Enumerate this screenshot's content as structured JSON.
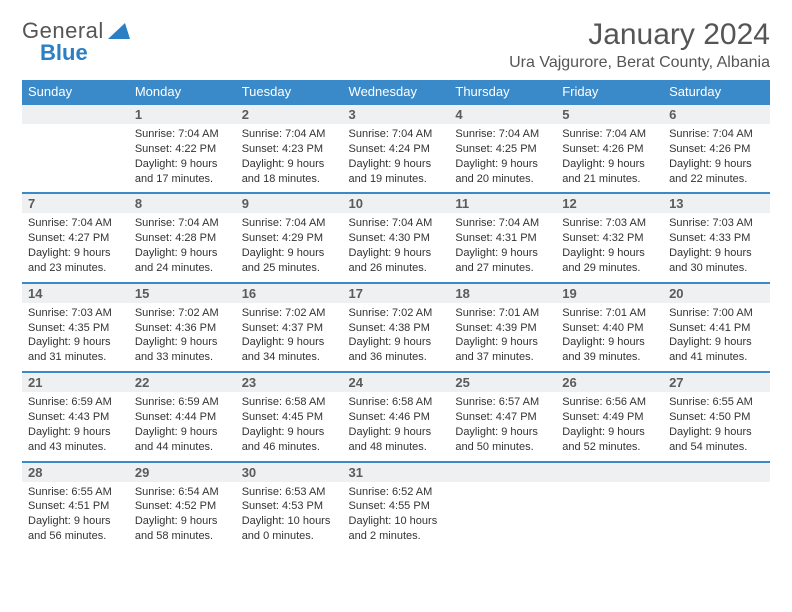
{
  "brand": {
    "g": "General",
    "b": "Blue"
  },
  "title": {
    "month": "January 2024",
    "location": "Ura Vajgurore, Berat County, Albania"
  },
  "dow": [
    "Sunday",
    "Monday",
    "Tuesday",
    "Wednesday",
    "Thursday",
    "Friday",
    "Saturday"
  ],
  "colors": {
    "accent": "#3a8ac9",
    "daynum_bg": "#eef0f2",
    "text": "#333333",
    "muted": "#555555"
  },
  "weeks": [
    [
      {
        "n": "",
        "sunrise": "",
        "sunset": "",
        "day1": "",
        "day2": ""
      },
      {
        "n": "1",
        "sunrise": "Sunrise: 7:04 AM",
        "sunset": "Sunset: 4:22 PM",
        "day1": "Daylight: 9 hours",
        "day2": "and 17 minutes."
      },
      {
        "n": "2",
        "sunrise": "Sunrise: 7:04 AM",
        "sunset": "Sunset: 4:23 PM",
        "day1": "Daylight: 9 hours",
        "day2": "and 18 minutes."
      },
      {
        "n": "3",
        "sunrise": "Sunrise: 7:04 AM",
        "sunset": "Sunset: 4:24 PM",
        "day1": "Daylight: 9 hours",
        "day2": "and 19 minutes."
      },
      {
        "n": "4",
        "sunrise": "Sunrise: 7:04 AM",
        "sunset": "Sunset: 4:25 PM",
        "day1": "Daylight: 9 hours",
        "day2": "and 20 minutes."
      },
      {
        "n": "5",
        "sunrise": "Sunrise: 7:04 AM",
        "sunset": "Sunset: 4:26 PM",
        "day1": "Daylight: 9 hours",
        "day2": "and 21 minutes."
      },
      {
        "n": "6",
        "sunrise": "Sunrise: 7:04 AM",
        "sunset": "Sunset: 4:26 PM",
        "day1": "Daylight: 9 hours",
        "day2": "and 22 minutes."
      }
    ],
    [
      {
        "n": "7",
        "sunrise": "Sunrise: 7:04 AM",
        "sunset": "Sunset: 4:27 PM",
        "day1": "Daylight: 9 hours",
        "day2": "and 23 minutes."
      },
      {
        "n": "8",
        "sunrise": "Sunrise: 7:04 AM",
        "sunset": "Sunset: 4:28 PM",
        "day1": "Daylight: 9 hours",
        "day2": "and 24 minutes."
      },
      {
        "n": "9",
        "sunrise": "Sunrise: 7:04 AM",
        "sunset": "Sunset: 4:29 PM",
        "day1": "Daylight: 9 hours",
        "day2": "and 25 minutes."
      },
      {
        "n": "10",
        "sunrise": "Sunrise: 7:04 AM",
        "sunset": "Sunset: 4:30 PM",
        "day1": "Daylight: 9 hours",
        "day2": "and 26 minutes."
      },
      {
        "n": "11",
        "sunrise": "Sunrise: 7:04 AM",
        "sunset": "Sunset: 4:31 PM",
        "day1": "Daylight: 9 hours",
        "day2": "and 27 minutes."
      },
      {
        "n": "12",
        "sunrise": "Sunrise: 7:03 AM",
        "sunset": "Sunset: 4:32 PM",
        "day1": "Daylight: 9 hours",
        "day2": "and 29 minutes."
      },
      {
        "n": "13",
        "sunrise": "Sunrise: 7:03 AM",
        "sunset": "Sunset: 4:33 PM",
        "day1": "Daylight: 9 hours",
        "day2": "and 30 minutes."
      }
    ],
    [
      {
        "n": "14",
        "sunrise": "Sunrise: 7:03 AM",
        "sunset": "Sunset: 4:35 PM",
        "day1": "Daylight: 9 hours",
        "day2": "and 31 minutes."
      },
      {
        "n": "15",
        "sunrise": "Sunrise: 7:02 AM",
        "sunset": "Sunset: 4:36 PM",
        "day1": "Daylight: 9 hours",
        "day2": "and 33 minutes."
      },
      {
        "n": "16",
        "sunrise": "Sunrise: 7:02 AM",
        "sunset": "Sunset: 4:37 PM",
        "day1": "Daylight: 9 hours",
        "day2": "and 34 minutes."
      },
      {
        "n": "17",
        "sunrise": "Sunrise: 7:02 AM",
        "sunset": "Sunset: 4:38 PM",
        "day1": "Daylight: 9 hours",
        "day2": "and 36 minutes."
      },
      {
        "n": "18",
        "sunrise": "Sunrise: 7:01 AM",
        "sunset": "Sunset: 4:39 PM",
        "day1": "Daylight: 9 hours",
        "day2": "and 37 minutes."
      },
      {
        "n": "19",
        "sunrise": "Sunrise: 7:01 AM",
        "sunset": "Sunset: 4:40 PM",
        "day1": "Daylight: 9 hours",
        "day2": "and 39 minutes."
      },
      {
        "n": "20",
        "sunrise": "Sunrise: 7:00 AM",
        "sunset": "Sunset: 4:41 PM",
        "day1": "Daylight: 9 hours",
        "day2": "and 41 minutes."
      }
    ],
    [
      {
        "n": "21",
        "sunrise": "Sunrise: 6:59 AM",
        "sunset": "Sunset: 4:43 PM",
        "day1": "Daylight: 9 hours",
        "day2": "and 43 minutes."
      },
      {
        "n": "22",
        "sunrise": "Sunrise: 6:59 AM",
        "sunset": "Sunset: 4:44 PM",
        "day1": "Daylight: 9 hours",
        "day2": "and 44 minutes."
      },
      {
        "n": "23",
        "sunrise": "Sunrise: 6:58 AM",
        "sunset": "Sunset: 4:45 PM",
        "day1": "Daylight: 9 hours",
        "day2": "and 46 minutes."
      },
      {
        "n": "24",
        "sunrise": "Sunrise: 6:58 AM",
        "sunset": "Sunset: 4:46 PM",
        "day1": "Daylight: 9 hours",
        "day2": "and 48 minutes."
      },
      {
        "n": "25",
        "sunrise": "Sunrise: 6:57 AM",
        "sunset": "Sunset: 4:47 PM",
        "day1": "Daylight: 9 hours",
        "day2": "and 50 minutes."
      },
      {
        "n": "26",
        "sunrise": "Sunrise: 6:56 AM",
        "sunset": "Sunset: 4:49 PM",
        "day1": "Daylight: 9 hours",
        "day2": "and 52 minutes."
      },
      {
        "n": "27",
        "sunrise": "Sunrise: 6:55 AM",
        "sunset": "Sunset: 4:50 PM",
        "day1": "Daylight: 9 hours",
        "day2": "and 54 minutes."
      }
    ],
    [
      {
        "n": "28",
        "sunrise": "Sunrise: 6:55 AM",
        "sunset": "Sunset: 4:51 PM",
        "day1": "Daylight: 9 hours",
        "day2": "and 56 minutes."
      },
      {
        "n": "29",
        "sunrise": "Sunrise: 6:54 AM",
        "sunset": "Sunset: 4:52 PM",
        "day1": "Daylight: 9 hours",
        "day2": "and 58 minutes."
      },
      {
        "n": "30",
        "sunrise": "Sunrise: 6:53 AM",
        "sunset": "Sunset: 4:53 PM",
        "day1": "Daylight: 10 hours",
        "day2": "and 0 minutes."
      },
      {
        "n": "31",
        "sunrise": "Sunrise: 6:52 AM",
        "sunset": "Sunset: 4:55 PM",
        "day1": "Daylight: 10 hours",
        "day2": "and 2 minutes."
      },
      {
        "n": "",
        "sunrise": "",
        "sunset": "",
        "day1": "",
        "day2": ""
      },
      {
        "n": "",
        "sunrise": "",
        "sunset": "",
        "day1": "",
        "day2": ""
      },
      {
        "n": "",
        "sunrise": "",
        "sunset": "",
        "day1": "",
        "day2": ""
      }
    ]
  ]
}
